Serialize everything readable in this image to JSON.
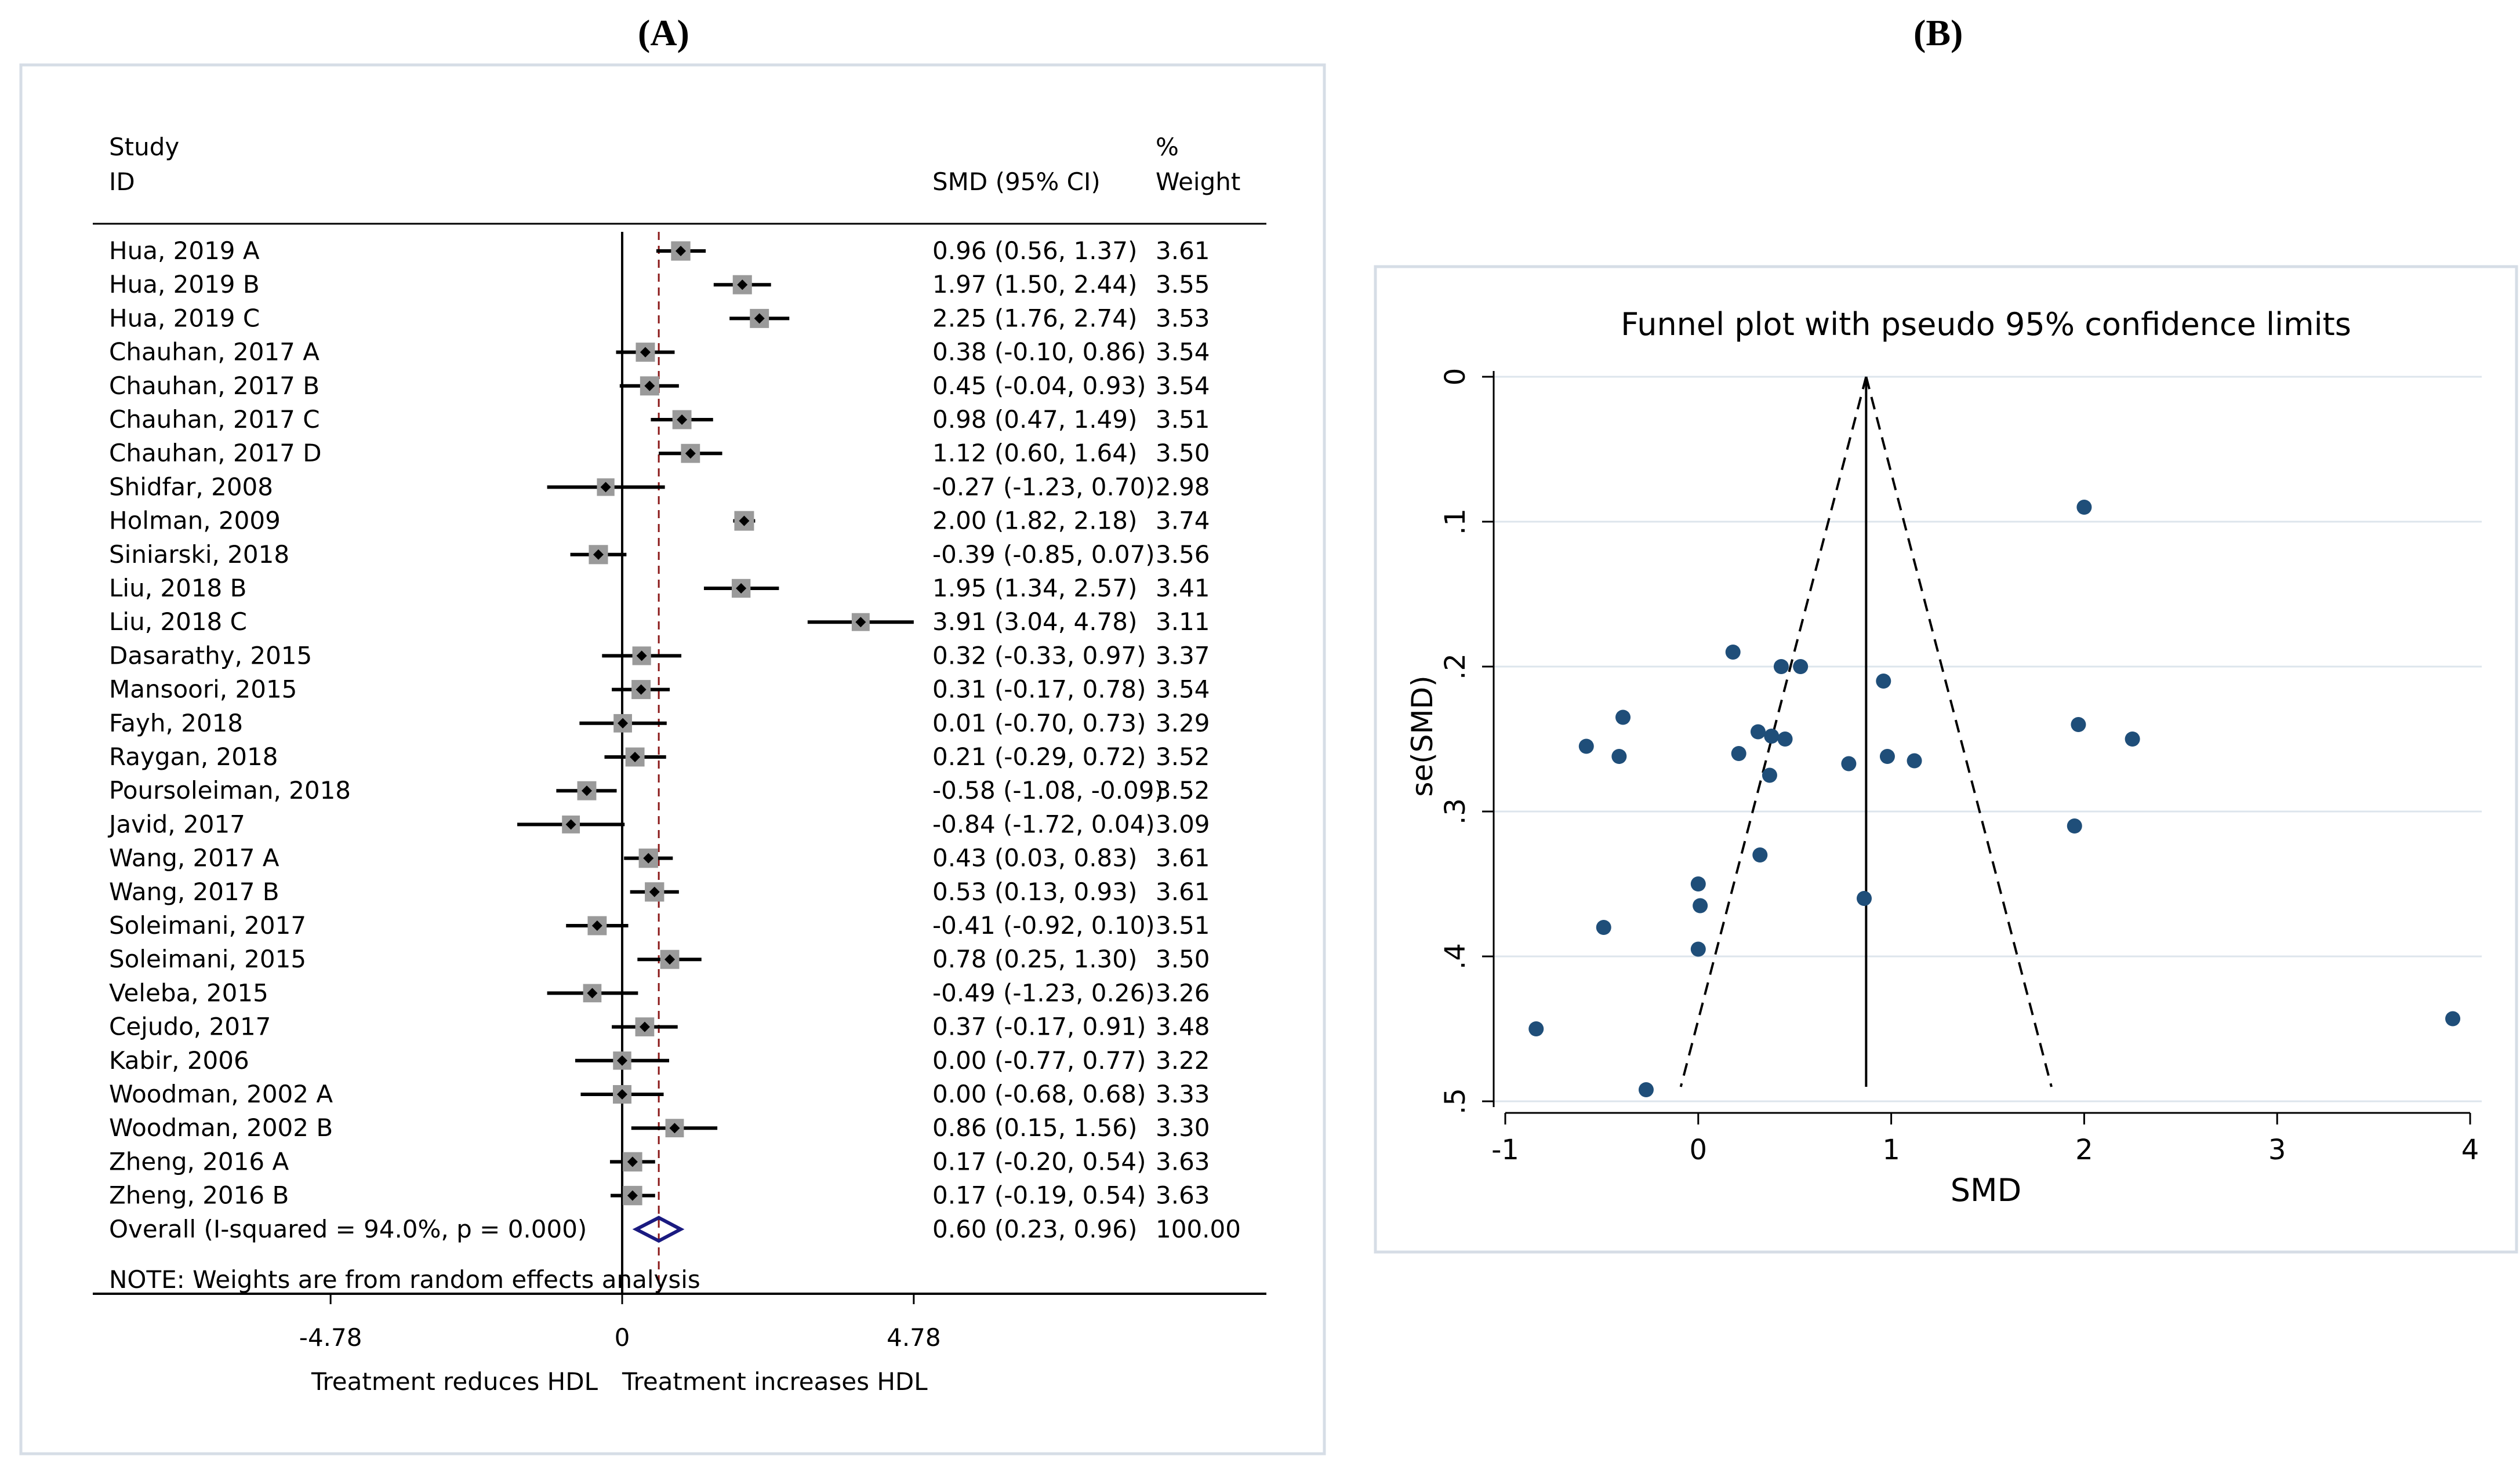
{
  "panels": {
    "a_label": "(A)",
    "b_label": "(B)"
  },
  "chart_data": [
    {
      "type": "forest",
      "header": {
        "study_line1": "Study",
        "study_line2": "ID",
        "smd": "SMD (95% CI)",
        "weight_line1": "%",
        "weight_line2": "Weight"
      },
      "studies": [
        {
          "label": "Hua, 2019 A",
          "smd": 0.96,
          "lo": 0.56,
          "hi": 1.37,
          "ci": "0.96 (0.56, 1.37)",
          "weight": "3.61"
        },
        {
          "label": "Hua, 2019 B",
          "smd": 1.97,
          "lo": 1.5,
          "hi": 2.44,
          "ci": "1.97 (1.50, 2.44)",
          "weight": "3.55"
        },
        {
          "label": "Hua, 2019 C",
          "smd": 2.25,
          "lo": 1.76,
          "hi": 2.74,
          "ci": "2.25 (1.76, 2.74)",
          "weight": "3.53"
        },
        {
          "label": "Chauhan, 2017 A",
          "smd": 0.38,
          "lo": -0.1,
          "hi": 0.86,
          "ci": "0.38 (-0.10, 0.86)",
          "weight": "3.54"
        },
        {
          "label": "Chauhan, 2017 B",
          "smd": 0.45,
          "lo": -0.04,
          "hi": 0.93,
          "ci": "0.45 (-0.04, 0.93)",
          "weight": "3.54"
        },
        {
          "label": "Chauhan, 2017 C",
          "smd": 0.98,
          "lo": 0.47,
          "hi": 1.49,
          "ci": "0.98 (0.47, 1.49)",
          "weight": "3.51"
        },
        {
          "label": "Chauhan, 2017 D",
          "smd": 1.12,
          "lo": 0.6,
          "hi": 1.64,
          "ci": "1.12 (0.60, 1.64)",
          "weight": "3.50"
        },
        {
          "label": "Shidfar, 2008",
          "smd": -0.27,
          "lo": -1.23,
          "hi": 0.7,
          "ci": "-0.27 (-1.23, 0.70)",
          "weight": "2.98"
        },
        {
          "label": "Holman, 2009",
          "smd": 2.0,
          "lo": 1.82,
          "hi": 2.18,
          "ci": "2.00 (1.82, 2.18)",
          "weight": "3.74"
        },
        {
          "label": "Siniarski, 2018",
          "smd": -0.39,
          "lo": -0.85,
          "hi": 0.07,
          "ci": "-0.39 (-0.85, 0.07)",
          "weight": "3.56"
        },
        {
          "label": "Liu, 2018 B",
          "smd": 1.95,
          "lo": 1.34,
          "hi": 2.57,
          "ci": "1.95 (1.34, 2.57)",
          "weight": "3.41"
        },
        {
          "label": "Liu, 2018 C",
          "smd": 3.91,
          "lo": 3.04,
          "hi": 4.78,
          "ci": "3.91 (3.04, 4.78)",
          "weight": "3.11"
        },
        {
          "label": "Dasarathy, 2015",
          "smd": 0.32,
          "lo": -0.33,
          "hi": 0.97,
          "ci": "0.32 (-0.33, 0.97)",
          "weight": "3.37"
        },
        {
          "label": "Mansoori, 2015",
          "smd": 0.31,
          "lo": -0.17,
          "hi": 0.78,
          "ci": "0.31 (-0.17, 0.78)",
          "weight": "3.54"
        },
        {
          "label": "Fayh, 2018",
          "smd": 0.01,
          "lo": -0.7,
          "hi": 0.73,
          "ci": "0.01 (-0.70, 0.73)",
          "weight": "3.29"
        },
        {
          "label": "Raygan, 2018",
          "smd": 0.21,
          "lo": -0.29,
          "hi": 0.72,
          "ci": "0.21 (-0.29, 0.72)",
          "weight": "3.52"
        },
        {
          "label": "Poursoleiman, 2018",
          "smd": -0.58,
          "lo": -1.08,
          "hi": -0.09,
          "ci": "-0.58 (-1.08, -0.09)",
          "weight": "3.52"
        },
        {
          "label": "Javid, 2017",
          "smd": -0.84,
          "lo": -1.72,
          "hi": 0.04,
          "ci": "-0.84 (-1.72, 0.04)",
          "weight": "3.09"
        },
        {
          "label": "Wang, 2017 A",
          "smd": 0.43,
          "lo": 0.03,
          "hi": 0.83,
          "ci": "0.43 (0.03, 0.83)",
          "weight": "3.61"
        },
        {
          "label": "Wang, 2017 B",
          "smd": 0.53,
          "lo": 0.13,
          "hi": 0.93,
          "ci": "0.53 (0.13, 0.93)",
          "weight": "3.61"
        },
        {
          "label": "Soleimani, 2017",
          "smd": -0.41,
          "lo": -0.92,
          "hi": 0.1,
          "ci": "-0.41 (-0.92, 0.10)",
          "weight": "3.51"
        },
        {
          "label": "Soleimani, 2015",
          "smd": 0.78,
          "lo": 0.25,
          "hi": 1.3,
          "ci": "0.78 (0.25, 1.30)",
          "weight": "3.50"
        },
        {
          "label": "Veleba, 2015",
          "smd": -0.49,
          "lo": -1.23,
          "hi": 0.26,
          "ci": "-0.49 (-1.23, 0.26)",
          "weight": "3.26"
        },
        {
          "label": "Cejudo, 2017",
          "smd": 0.37,
          "lo": -0.17,
          "hi": 0.91,
          "ci": "0.37 (-0.17, 0.91)",
          "weight": "3.48"
        },
        {
          "label": "Kabir, 2006",
          "smd": 0.0,
          "lo": -0.77,
          "hi": 0.77,
          "ci": "0.00 (-0.77, 0.77)",
          "weight": "3.22"
        },
        {
          "label": "Woodman, 2002 A",
          "smd": 0.0,
          "lo": -0.68,
          "hi": 0.68,
          "ci": "0.00 (-0.68, 0.68)",
          "weight": "3.33"
        },
        {
          "label": "Woodman, 2002 B",
          "smd": 0.86,
          "lo": 0.15,
          "hi": 1.56,
          "ci": "0.86 (0.15, 1.56)",
          "weight": "3.30"
        },
        {
          "label": "Zheng, 2016 A",
          "smd": 0.17,
          "lo": -0.2,
          "hi": 0.54,
          "ci": "0.17 (-0.20, 0.54)",
          "weight": "3.63"
        },
        {
          "label": "Zheng, 2016 B",
          "smd": 0.17,
          "lo": -0.19,
          "hi": 0.54,
          "ci": "0.17 (-0.19, 0.54)",
          "weight": "3.63"
        }
      ],
      "overall": {
        "label": "Overall  (I-squared = 94.0%, p = 0.000)",
        "smd": 0.6,
        "lo": 0.23,
        "hi": 0.96,
        "ci": "0.60 (0.23, 0.96)",
        "weight": "100.00",
        "color": "#1a1a80"
      },
      "note": "NOTE: Weights are from random effects analysis",
      "xlim": [
        -4.78,
        4.78
      ],
      "xticks": [
        "-4.78",
        "0",
        "4.78"
      ],
      "xlabel_left": "Treatment reduces HDL",
      "xlabel_right": "Treatment increases HDL",
      "reference_line_color": "#8b1a1a"
    },
    {
      "type": "scatter",
      "title": "Funnel plot with pseudo 95% confidence limits",
      "xlabel": "SMD",
      "ylabel": "se(SMD)",
      "xlim": [
        -1,
        4
      ],
      "ylim": [
        0,
        0.5
      ],
      "y_reversed": true,
      "xticks": [
        "-1",
        "0",
        "1",
        "2",
        "3",
        "4"
      ],
      "yticks": [
        "0",
        ".1",
        ".2",
        ".3",
        ".4",
        ".5"
      ],
      "grid": "horizontal",
      "pooled_smd": 0.87,
      "point_color": "#1f4e79",
      "points": [
        {
          "x": 2.0,
          "y": 0.09
        },
        {
          "x": 0.18,
          "y": 0.19
        },
        {
          "x": 0.43,
          "y": 0.2
        },
        {
          "x": 0.53,
          "y": 0.2
        },
        {
          "x": 0.96,
          "y": 0.21
        },
        {
          "x": -0.39,
          "y": 0.235
        },
        {
          "x": 1.97,
          "y": 0.24
        },
        {
          "x": 0.31,
          "y": 0.245
        },
        {
          "x": 0.38,
          "y": 0.248
        },
        {
          "x": 0.45,
          "y": 0.25
        },
        {
          "x": 2.25,
          "y": 0.25
        },
        {
          "x": -0.58,
          "y": 0.255
        },
        {
          "x": 0.21,
          "y": 0.26
        },
        {
          "x": -0.41,
          "y": 0.262
        },
        {
          "x": 0.98,
          "y": 0.262
        },
        {
          "x": 1.12,
          "y": 0.265
        },
        {
          "x": 0.78,
          "y": 0.267
        },
        {
          "x": 0.37,
          "y": 0.275
        },
        {
          "x": 1.95,
          "y": 0.31
        },
        {
          "x": 0.32,
          "y": 0.33
        },
        {
          "x": 0.0,
          "y": 0.35
        },
        {
          "x": 0.01,
          "y": 0.365
        },
        {
          "x": 0.86,
          "y": 0.36
        },
        {
          "x": -0.49,
          "y": 0.38
        },
        {
          "x": 0.0,
          "y": 0.395
        },
        {
          "x": -0.84,
          "y": 0.45
        },
        {
          "x": 3.91,
          "y": 0.443
        },
        {
          "x": -0.27,
          "y": 0.492
        }
      ]
    }
  ]
}
